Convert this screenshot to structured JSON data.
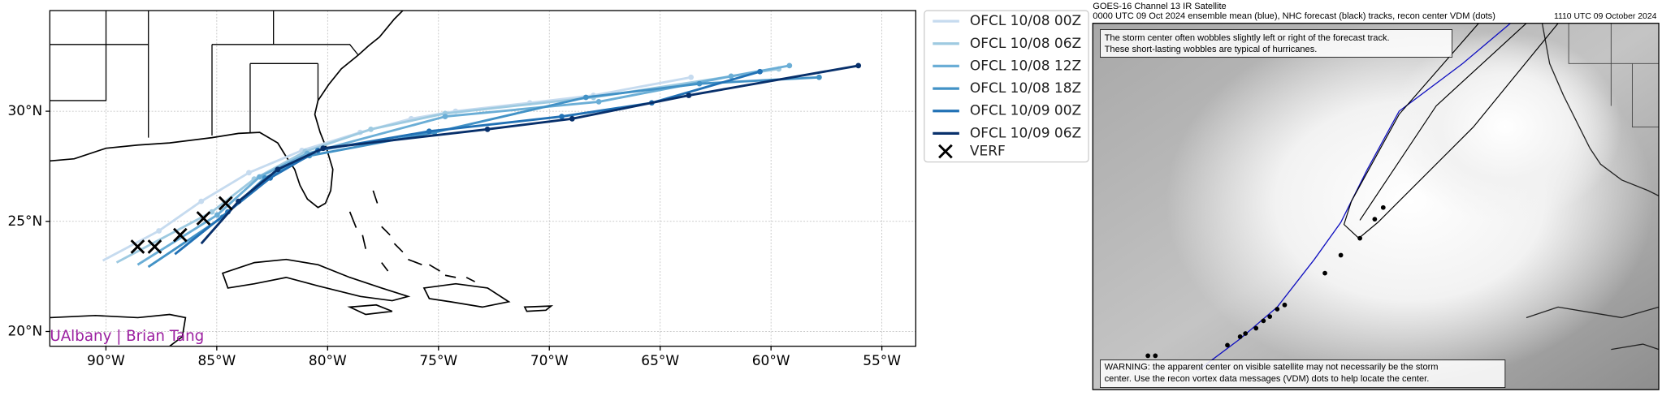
{
  "map": {
    "xlim": [
      -92.53,
      -53.47
    ],
    "ylim": [
      19.33,
      34.57
    ],
    "xticks": [
      {
        "value": -90,
        "label": "90°W"
      },
      {
        "value": -85,
        "label": "85°W"
      },
      {
        "value": -80,
        "label": "80°W"
      },
      {
        "value": -75,
        "label": "75°W"
      },
      {
        "value": -70,
        "label": "70°W"
      },
      {
        "value": -65,
        "label": "65°W"
      },
      {
        "value": -60,
        "label": "60°W"
      },
      {
        "value": -55,
        "label": "55°W"
      }
    ],
    "yticks": [
      {
        "value": 20,
        "label": "20°N"
      },
      {
        "value": 25,
        "label": "25°N"
      },
      {
        "value": 30,
        "label": "30°N"
      }
    ],
    "grid": true,
    "credit": "UAlbany | Brian Tang",
    "series": [
      {
        "name": "OFCL 10/08 00Z",
        "color": "#c6dbef",
        "lon": [
          -90.14,
          -87.61,
          -85.7,
          -83.55,
          -81.16,
          -78.53,
          -76.23,
          -74.23,
          -70.88,
          -68.01,
          -63.61
        ],
        "lat": [
          23.22,
          24.57,
          25.91,
          27.21,
          28.22,
          29.04,
          29.66,
          30.0,
          30.38,
          30.72,
          31.54
        ]
      },
      {
        "name": "OFCL 10/08 06Z",
        "color": "#9ecae1",
        "lon": [
          -89.52,
          -85.22,
          -83.31,
          -81.01,
          -78.05,
          -74.7,
          -68.01,
          -59.65
        ],
        "lat": [
          23.13,
          25.43,
          26.92,
          28.17,
          29.18,
          29.9,
          30.63,
          31.92
        ]
      },
      {
        "name": "OFCL 10/08 12Z",
        "color": "#6baed6",
        "lon": [
          -88.57,
          -84.98,
          -83.07,
          -80.92,
          -74.7,
          -67.77,
          -61.8,
          -59.17
        ],
        "lat": [
          23.03,
          25.29,
          27.02,
          28.08,
          29.76,
          30.43,
          31.59,
          32.07
        ]
      },
      {
        "name": "OFCL 10/08 18Z",
        "color": "#4292c6",
        "lon": [
          -88.09,
          -84.74,
          -82.83,
          -80.82,
          -75.18,
          -68.35,
          -63.23,
          -57.83
        ],
        "lat": [
          22.93,
          25.19,
          26.97,
          27.98,
          29.04,
          30.63,
          31.25,
          31.54
        ]
      },
      {
        "name": "OFCL 10/09 00Z",
        "color": "#2171b5",
        "lon": [
          -86.89,
          -84.5,
          -82.59,
          -80.44,
          -75.42,
          -69.44,
          -65.38,
          -60.5
        ],
        "lat": [
          23.51,
          25.43,
          26.97,
          28.22,
          29.09,
          29.76,
          30.38,
          31.8
        ]
      },
      {
        "name": "OFCL 10/09 06Z",
        "color": "#08306b",
        "lon": [
          -85.7,
          -84.02,
          -82.25,
          -80.2,
          -72.79,
          -68.97,
          -63.71,
          -56.06
        ],
        "lat": [
          23.99,
          25.91,
          27.36,
          28.32,
          29.18,
          29.66,
          30.72,
          32.07
        ]
      }
    ],
    "verf": {
      "name": "VERF",
      "color": "#000000",
      "lon": [
        -88.57,
        -87.8,
        -86.65,
        -85.6,
        -84.6
      ],
      "lat": [
        23.85,
        23.85,
        24.38,
        25.14,
        25.82
      ]
    }
  },
  "satellite": {
    "title": "GOES-16 Channel 13 IR Satellite",
    "subtitle": "0000 UTC 09 Oct 2024 ensemble mean (blue), NHC forecast (black) tracks, recon center VDM (dots)",
    "time": "1110 UTC 09 October 2024",
    "note": [
      "The storm center often wobbles slightly left or right of the forecast track.",
      "These short-lasting wobbles are typical of hurricanes."
    ],
    "warning": [
      "WARNING: the apparent center on visible satellite may not necessarily be the storm",
      "center. Use the recon vortex data messages (VDM) dots to help locate the center."
    ]
  }
}
